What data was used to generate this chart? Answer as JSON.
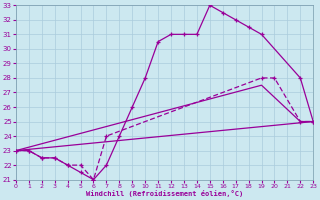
{
  "xlabel": "Windchill (Refroidissement éolien,°C)",
  "background_color": "#cce8f0",
  "grid_color": "#aaccdd",
  "line_color": "#990099",
  "xmin": 0,
  "xmax": 23,
  "ymin": 21,
  "ymax": 33,
  "xticks": [
    0,
    1,
    2,
    3,
    4,
    5,
    6,
    7,
    8,
    9,
    10,
    11,
    12,
    13,
    14,
    15,
    16,
    17,
    18,
    19,
    20,
    21,
    22,
    23
  ],
  "yticks": [
    21,
    22,
    23,
    24,
    25,
    26,
    27,
    28,
    29,
    30,
    31,
    32,
    33
  ],
  "curve1_x": [
    0,
    1,
    2,
    3,
    4,
    5,
    6,
    7,
    8,
    9,
    10,
    11,
    12,
    13,
    14,
    15,
    16,
    17,
    18,
    19,
    22,
    23
  ],
  "curve1_y": [
    23,
    23,
    22.5,
    22.5,
    22,
    21.5,
    21,
    22,
    24,
    26,
    28,
    30.5,
    31,
    31,
    31,
    33,
    32.5,
    32,
    31.5,
    31,
    28,
    25
  ],
  "curve2_x": [
    0,
    1,
    2,
    3,
    4,
    5,
    6,
    7,
    19,
    20,
    22,
    23
  ],
  "curve2_y": [
    23,
    23,
    22.5,
    22.5,
    22,
    22,
    21,
    24,
    28,
    28,
    25,
    25
  ],
  "line1_x": [
    0,
    19,
    22,
    23
  ],
  "line1_y": [
    23,
    27.5,
    25,
    25
  ],
  "line2_x": [
    0,
    23
  ],
  "line2_y": [
    23,
    25
  ]
}
